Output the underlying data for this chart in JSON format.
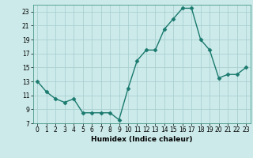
{
  "x": [
    0,
    1,
    2,
    3,
    4,
    5,
    6,
    7,
    8,
    9,
    10,
    11,
    12,
    13,
    14,
    15,
    16,
    17,
    18,
    19,
    20,
    21,
    22,
    23
  ],
  "y": [
    13,
    11.5,
    10.5,
    10,
    10.5,
    8.5,
    8.5,
    8.5,
    8.5,
    7.5,
    12,
    16,
    17.5,
    17.5,
    20.5,
    22,
    23.5,
    23.5,
    19,
    17.5,
    13.5,
    14,
    14,
    15
  ],
  "line_color": "#1a7a6e",
  "marker": "D",
  "markersize": 2.5,
  "linewidth": 1.0,
  "background_color": "#cceaea",
  "grid_color": "#aad0d0",
  "xlabel": "Humidex (Indice chaleur)",
  "xlim": [
    -0.5,
    23.5
  ],
  "ylim": [
    7,
    24
  ],
  "yticks": [
    7,
    9,
    11,
    13,
    15,
    17,
    19,
    21,
    23
  ],
  "xticks": [
    0,
    1,
    2,
    3,
    4,
    5,
    6,
    7,
    8,
    9,
    10,
    11,
    12,
    13,
    14,
    15,
    16,
    17,
    18,
    19,
    20,
    21,
    22,
    23
  ],
  "tick_labelsize": 5.5,
  "xlabel_fontsize": 6.5,
  "xlabel_fontweight": "bold"
}
